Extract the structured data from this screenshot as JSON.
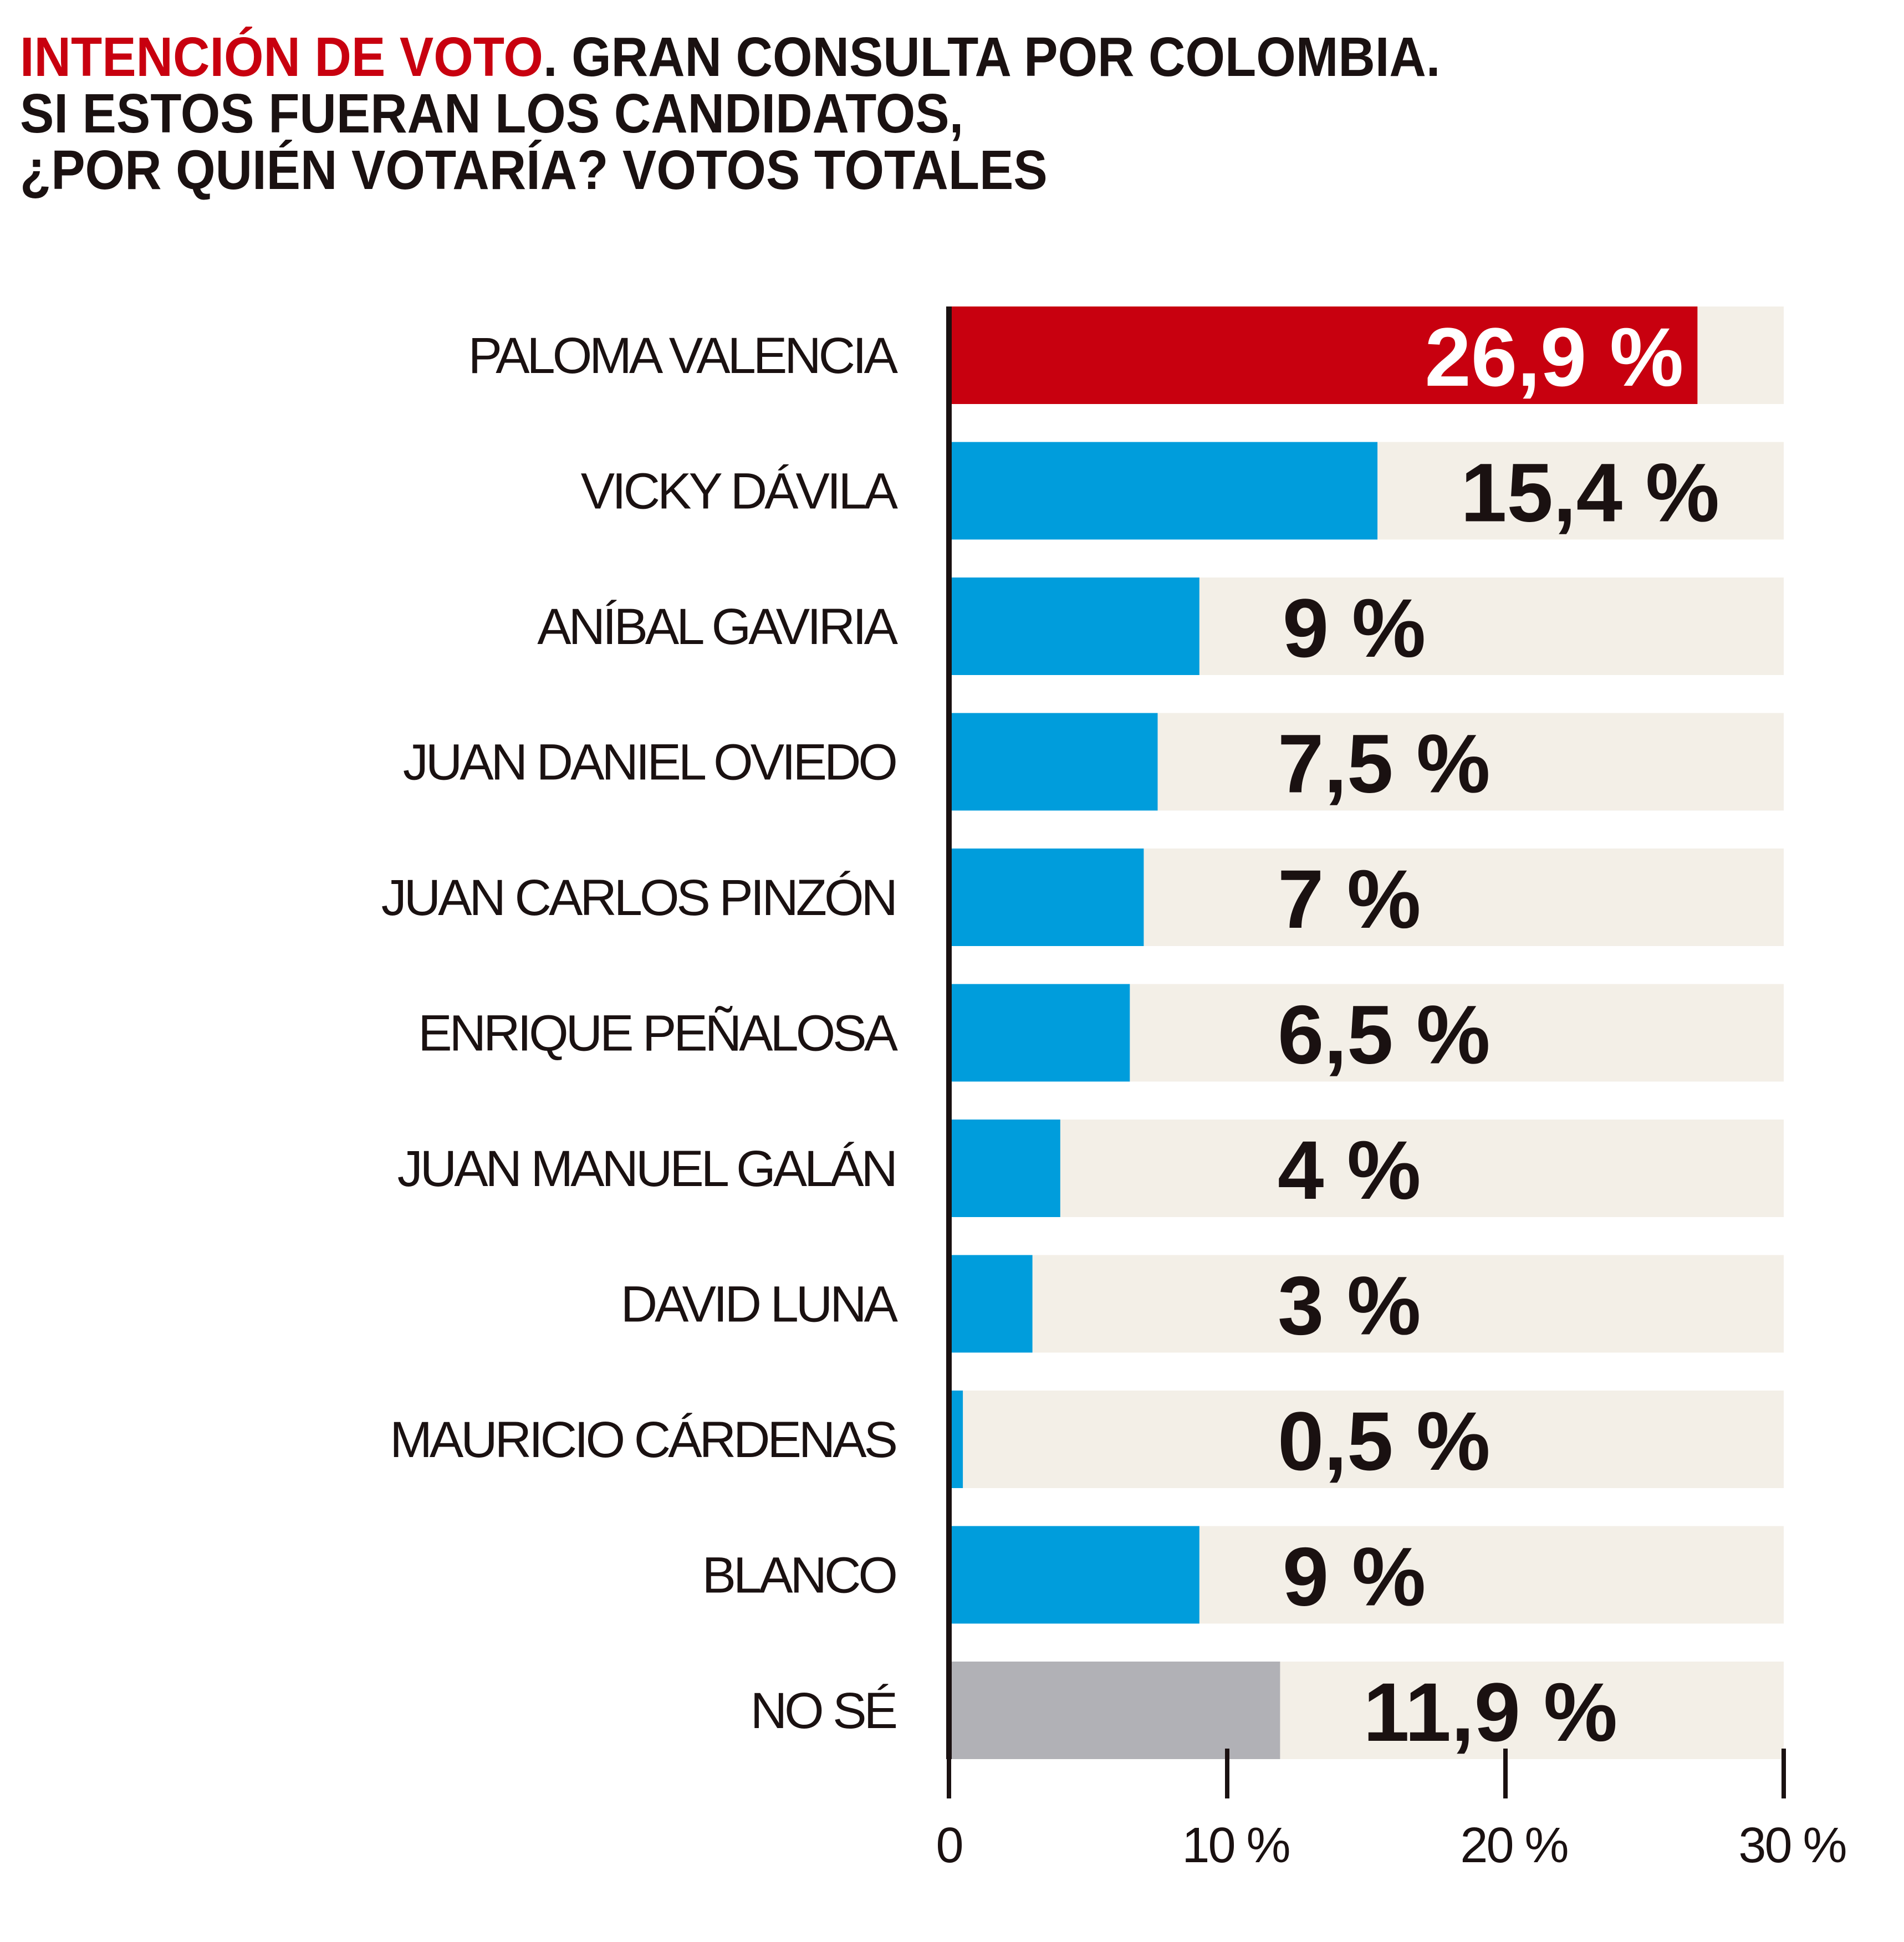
{
  "title": {
    "accent": "INTENCIÓN DE VOTO",
    "line1_rest": ". GRAN CONSULTA POR COLOMBIA.",
    "line2": "SI ESTOS FUERAN LOS CANDIDATOS,",
    "line3": "¿POR QUIÉN VOTARÍA? VOTOS TOTALES"
  },
  "colors": {
    "highlight": "#c8000f",
    "bar": "#009ddc",
    "undecided": "#b1b1b6",
    "track": "#f3efe7",
    "text": "#1a1111",
    "axis": "#1a1111"
  },
  "chart_data": {
    "type": "bar",
    "orientation": "horizontal",
    "title": "INTENCIÓN DE VOTO. GRAN CONSULTA POR COLOMBIA. SI ESTOS FUERAN LOS CANDIDATOS, ¿POR QUIÉN VOTARÍA? VOTOS TOTALES",
    "categories": [
      "PALOMA VALENCIA",
      "VICKY DÁVILA",
      "ANÍBAL GAVIRIA",
      "JUAN DANIEL OVIEDO",
      "JUAN CARLOS PINZÓN",
      "ENRIQUE PEÑALOSA",
      "JUAN MANUEL GALÁN",
      "DAVID LUNA",
      "MAURICIO CÁRDENAS",
      "BLANCO",
      "NO SÉ"
    ],
    "values": [
      26.9,
      15.4,
      9,
      7.5,
      7,
      6.5,
      4,
      3,
      0.5,
      9,
      11.9
    ],
    "value_labels": [
      "26,9 %",
      "15,4 %",
      "9 %",
      "7,5 %",
      "7 %",
      "6,5 %",
      "4 %",
      "3 %",
      "0,5 %",
      "9 %",
      "11,9 %"
    ],
    "xlim": [
      0,
      30
    ],
    "ticks": [
      0,
      10,
      20,
      30
    ],
    "tick_labels": [
      "0",
      "10 %",
      "20 %",
      "30 %"
    ],
    "xlabel": "",
    "ylabel": "",
    "grid": false,
    "legend": "none"
  }
}
